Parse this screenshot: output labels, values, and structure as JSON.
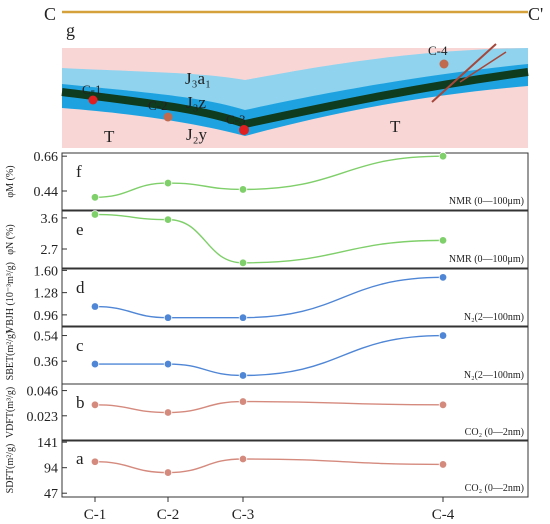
{
  "colors": {
    "section_line": "#d4a13a",
    "green": "#7fcf6a",
    "blue": "#4f86d6",
    "red": "#d58a7e",
    "layer_top": "#8fd3ef",
    "layer_mid": "#1fa3e0",
    "coal": "#0f3b1f",
    "bedrock": "#f8d6d6",
    "fault": "#a5473a"
  },
  "section": {
    "left_label": "C",
    "right_label": "C'",
    "panel_letter": "g",
    "strata": [
      "J₃a₁",
      "J₃z",
      "J₂y",
      "T",
      "T"
    ],
    "wells": [
      "C-1",
      "C-2",
      "C-3",
      "C-4"
    ]
  },
  "chart_data": [
    {
      "panel": "f",
      "type": "line",
      "ylabel": "φM (%)",
      "note": "NMR (0—100μm)",
      "yticks": [
        "0.66",
        "0.44"
      ],
      "ylim": [
        0.32,
        0.68
      ],
      "categories": [
        "C-1",
        "C-2",
        "C-3",
        "C-4"
      ],
      "values": [
        0.4,
        0.49,
        0.45,
        0.66
      ],
      "color": "green"
    },
    {
      "panel": "e",
      "type": "line",
      "ylabel": "φN (%)",
      "note": "NMR (0—100μm)",
      "yticks": [
        "3.6",
        "2.7"
      ],
      "ylim": [
        2.15,
        3.8
      ],
      "categories": [
        "C-1",
        "C-2",
        "C-3",
        "C-4"
      ],
      "values": [
        3.7,
        3.55,
        2.3,
        2.95
      ],
      "color": "green"
    },
    {
      "panel": "d",
      "type": "line",
      "ylabel": "VBJH (10⁻³m³/g)",
      "note": "N₂(2—100nm)",
      "yticks": [
        "1.60",
        "1.28",
        "0.96"
      ],
      "ylim": [
        0.8,
        1.62
      ],
      "categories": [
        "C-1",
        "C-2",
        "C-3",
        "C-4"
      ],
      "values": [
        1.08,
        0.92,
        0.92,
        1.5
      ],
      "color": "blue"
    },
    {
      "panel": "c",
      "type": "line",
      "ylabel": "SBET(m²/g)",
      "note": "N₂(2—100nm)",
      "yticks": [
        "0.54",
        "0.36"
      ],
      "ylim": [
        0.2,
        0.6
      ],
      "categories": [
        "C-1",
        "C-2",
        "C-3",
        "C-4"
      ],
      "values": [
        0.34,
        0.34,
        0.26,
        0.54
      ],
      "color": "blue"
    },
    {
      "panel": "b",
      "type": "line",
      "ylabel": "VDFT(m³/g)",
      "note": "CO₂ (0—2nm)",
      "yticks": [
        "0.046",
        "0.023"
      ],
      "ylim": [
        0.0,
        0.052
      ],
      "categories": [
        "C-1",
        "C-2",
        "C-3",
        "C-4"
      ],
      "values": [
        0.033,
        0.026,
        0.036,
        0.033
      ],
      "color": "red"
    },
    {
      "panel": "a",
      "type": "line",
      "ylabel": "SDFT(m²/g)",
      "note": "CO₂ (0—2nm)",
      "yticks": [
        "141",
        "94",
        "47"
      ],
      "ylim": [
        40,
        145
      ],
      "categories": [
        "C-1",
        "C-2",
        "C-3",
        "C-4"
      ],
      "values": [
        105,
        85,
        110,
        100
      ],
      "color": "red"
    }
  ]
}
